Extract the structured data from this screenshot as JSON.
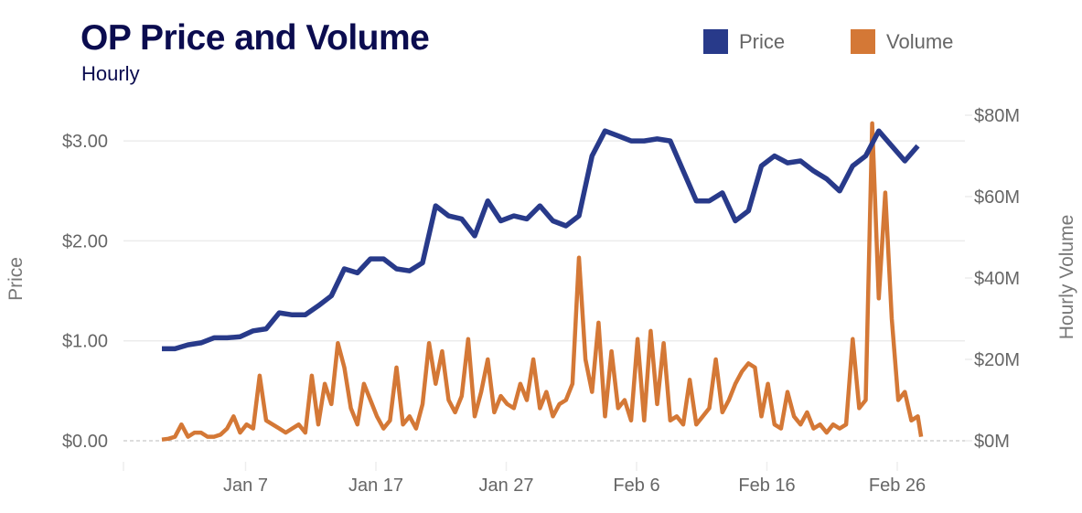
{
  "chart_data": {
    "type": "line",
    "title": "OP Price and Volume",
    "subtitle": "Hourly",
    "legend": {
      "placement": "top-right",
      "entries": [
        "Price",
        "Volume"
      ]
    },
    "colors": {
      "price": "#283a8a",
      "volume": "#d47836",
      "title": "#0b0c4f"
    },
    "y_left": {
      "label": "Price",
      "range": [
        0,
        3.3
      ],
      "ticks": [
        "$0.00",
        "$1.00",
        "$2.00",
        "$3.00"
      ],
      "tick_values": [
        0,
        1,
        2,
        3
      ]
    },
    "y_right": {
      "label": "Hourly Volume",
      "range": [
        0,
        80
      ],
      "ticks": [
        "$0M",
        "$20M",
        "$40M",
        "$60M",
        "$80M"
      ],
      "tick_values": [
        0,
        20,
        40,
        60,
        80
      ]
    },
    "x": {
      "ticks": [
        "Jan 7",
        "Jan 17",
        "Jan 27",
        "Feb 6",
        "Feb 16",
        "Feb 26"
      ]
    },
    "grid": true,
    "series": [
      {
        "name": "Price",
        "axis": "left",
        "points": [
          [
            "Jan 1",
            0.92
          ],
          [
            "Jan 2",
            0.92
          ],
          [
            "Jan 3",
            0.96
          ],
          [
            "Jan 4",
            0.98
          ],
          [
            "Jan 5",
            1.03
          ],
          [
            "Jan 6",
            1.03
          ],
          [
            "Jan 7",
            1.04
          ],
          [
            "Jan 8",
            1.1
          ],
          [
            "Jan 9",
            1.12
          ],
          [
            "Jan 10",
            1.28
          ],
          [
            "Jan 11",
            1.26
          ],
          [
            "Jan 12",
            1.26
          ],
          [
            "Jan 13",
            1.35
          ],
          [
            "Jan 14",
            1.45
          ],
          [
            "Jan 15",
            1.72
          ],
          [
            "Jan 16",
            1.68
          ],
          [
            "Jan 17",
            1.82
          ],
          [
            "Jan 18",
            1.82
          ],
          [
            "Jan 19",
            1.72
          ],
          [
            "Jan 20",
            1.7
          ],
          [
            "Jan 21",
            1.78
          ],
          [
            "Jan 22",
            2.35
          ],
          [
            "Jan 23",
            2.25
          ],
          [
            "Jan 24",
            2.22
          ],
          [
            "Jan 25",
            2.05
          ],
          [
            "Jan 26",
            2.4
          ],
          [
            "Jan 27",
            2.2
          ],
          [
            "Jan 28",
            2.25
          ],
          [
            "Jan 29",
            2.22
          ],
          [
            "Jan 30",
            2.35
          ],
          [
            "Jan 31",
            2.2
          ],
          [
            "Feb 1",
            2.15
          ],
          [
            "Feb 2",
            2.25
          ],
          [
            "Feb 3",
            2.85
          ],
          [
            "Feb 4",
            3.1
          ],
          [
            "Feb 5",
            3.05
          ],
          [
            "Feb 6",
            3.0
          ],
          [
            "Feb 7",
            3.0
          ],
          [
            "Feb 8",
            3.02
          ],
          [
            "Feb 9",
            3.0
          ],
          [
            "Feb 10",
            2.7
          ],
          [
            "Feb 11",
            2.4
          ],
          [
            "Feb 12",
            2.4
          ],
          [
            "Feb 13",
            2.48
          ],
          [
            "Feb 14",
            2.2
          ],
          [
            "Feb 15",
            2.3
          ],
          [
            "Feb 16",
            2.75
          ],
          [
            "Feb 17",
            2.85
          ],
          [
            "Feb 18",
            2.78
          ],
          [
            "Feb 19",
            2.8
          ],
          [
            "Feb 20",
            2.7
          ],
          [
            "Feb 21",
            2.62
          ],
          [
            "Feb 22",
            2.5
          ],
          [
            "Feb 23",
            2.75
          ],
          [
            "Feb 24",
            2.85
          ],
          [
            "Feb 25",
            3.1
          ],
          [
            "Feb 26",
            2.95
          ],
          [
            "Feb 27",
            2.8
          ],
          [
            "Feb 28",
            2.95
          ]
        ]
      },
      {
        "name": "Volume",
        "axis": "right",
        "points": [
          [
            "Jan 1 00:00",
            0.3
          ],
          [
            "Jan 1 12:00",
            0.5
          ],
          [
            "Jan 2 00:00",
            1
          ],
          [
            "Jan 2 12:00",
            4
          ],
          [
            "Jan 3 00:00",
            1
          ],
          [
            "Jan 3 12:00",
            2
          ],
          [
            "Jan 4 00:00",
            2
          ],
          [
            "Jan 4 12:00",
            1
          ],
          [
            "Jan 5 00:00",
            1
          ],
          [
            "Jan 5 12:00",
            1.5
          ],
          [
            "Jan 6 00:00",
            3
          ],
          [
            "Jan 6 12:00",
            6
          ],
          [
            "Jan 7 00:00",
            2
          ],
          [
            "Jan 7 12:00",
            4
          ],
          [
            "Jan 8 00:00",
            3
          ],
          [
            "Jan 8 12:00",
            16
          ],
          [
            "Jan 9 00:00",
            5
          ],
          [
            "Jan 9 12:00",
            4
          ],
          [
            "Jan 10 00:00",
            3
          ],
          [
            "Jan 10 12:00",
            2
          ],
          [
            "Jan 11 00:00",
            3
          ],
          [
            "Jan 11 12:00",
            4
          ],
          [
            "Jan 12 00:00",
            2
          ],
          [
            "Jan 12 12:00",
            16
          ],
          [
            "Jan 13 00:00",
            4
          ],
          [
            "Jan 13 12:00",
            14
          ],
          [
            "Jan 14 00:00",
            9
          ],
          [
            "Jan 14 12:00",
            24
          ],
          [
            "Jan 15 00:00",
            18
          ],
          [
            "Jan 15 12:00",
            8
          ],
          [
            "Jan 16 00:00",
            4
          ],
          [
            "Jan 16 12:00",
            14
          ],
          [
            "Jan 17 00:00",
            10
          ],
          [
            "Jan 17 12:00",
            6
          ],
          [
            "Jan 18 00:00",
            3
          ],
          [
            "Jan 18 12:00",
            5
          ],
          [
            "Jan 19 00:00",
            18
          ],
          [
            "Jan 19 12:00",
            4
          ],
          [
            "Jan 20 00:00",
            6
          ],
          [
            "Jan 20 12:00",
            3
          ],
          [
            "Jan 21 00:00",
            9
          ],
          [
            "Jan 21 12:00",
            24
          ],
          [
            "Jan 22 00:00",
            14
          ],
          [
            "Jan 22 12:00",
            22
          ],
          [
            "Jan 23 00:00",
            10
          ],
          [
            "Jan 23 12:00",
            7
          ],
          [
            "Jan 24 00:00",
            11
          ],
          [
            "Jan 24 12:00",
            25
          ],
          [
            "Jan 25 00:00",
            6
          ],
          [
            "Jan 25 12:00",
            12
          ],
          [
            "Jan 26 00:00",
            20
          ],
          [
            "Jan 26 12:00",
            7
          ],
          [
            "Jan 27 00:00",
            11
          ],
          [
            "Jan 27 12:00",
            9
          ],
          [
            "Jan 28 00:00",
            8
          ],
          [
            "Jan 28 12:00",
            14
          ],
          [
            "Jan 29 00:00",
            10
          ],
          [
            "Jan 29 12:00",
            20
          ],
          [
            "Jan 30 00:00",
            8
          ],
          [
            "Jan 30 12:00",
            12
          ],
          [
            "Jan 31 00:00",
            6
          ],
          [
            "Jan 31 12:00",
            9
          ],
          [
            "Feb 1 00:00",
            10
          ],
          [
            "Feb 1 12:00",
            14
          ],
          [
            "Feb 2 00:00",
            45
          ],
          [
            "Feb 2 12:00",
            20
          ],
          [
            "Feb 3 00:00",
            12
          ],
          [
            "Feb 3 12:00",
            29
          ],
          [
            "Feb 4 00:00",
            6
          ],
          [
            "Feb 4 12:00",
            22
          ],
          [
            "Feb 5 00:00",
            8
          ],
          [
            "Feb 5 12:00",
            10
          ],
          [
            "Feb 6 00:00",
            5
          ],
          [
            "Feb 6 12:00",
            25
          ],
          [
            "Feb 7 00:00",
            5
          ],
          [
            "Feb 7 12:00",
            27
          ],
          [
            "Feb 8 00:00",
            9
          ],
          [
            "Feb 8 12:00",
            24
          ],
          [
            "Feb 9 00:00",
            5
          ],
          [
            "Feb 9 12:00",
            6
          ],
          [
            "Feb 10 00:00",
            4
          ],
          [
            "Feb 10 12:00",
            15
          ],
          [
            "Feb 11 00:00",
            4
          ],
          [
            "Feb 11 12:00",
            6
          ],
          [
            "Feb 12 00:00",
            8
          ],
          [
            "Feb 12 12:00",
            20
          ],
          [
            "Feb 13 00:00",
            7
          ],
          [
            "Feb 13 12:00",
            10
          ],
          [
            "Feb 14 00:00",
            14
          ],
          [
            "Feb 14 12:00",
            17
          ],
          [
            "Feb 15 00:00",
            19
          ],
          [
            "Feb 15 12:00",
            18
          ],
          [
            "Feb 16 00:00",
            6
          ],
          [
            "Feb 16 12:00",
            14
          ],
          [
            "Feb 17 00:00",
            4
          ],
          [
            "Feb 17 12:00",
            3
          ],
          [
            "Feb 18 00:00",
            12
          ],
          [
            "Feb 18 12:00",
            6
          ],
          [
            "Feb 19 00:00",
            4
          ],
          [
            "Feb 19 12:00",
            7
          ],
          [
            "Feb 20 00:00",
            3
          ],
          [
            "Feb 20 12:00",
            4
          ],
          [
            "Feb 21 00:00",
            2
          ],
          [
            "Feb 21 12:00",
            4
          ],
          [
            "Feb 22 00:00",
            3
          ],
          [
            "Feb 22 12:00",
            4
          ],
          [
            "Feb 23 00:00",
            25
          ],
          [
            "Feb 23 12:00",
            8
          ],
          [
            "Feb 24 00:00",
            10
          ],
          [
            "Feb 24 12:00",
            78
          ],
          [
            "Feb 25 00:00",
            35
          ],
          [
            "Feb 25 12:00",
            61
          ],
          [
            "Feb 26 00:00",
            30
          ],
          [
            "Feb 26 12:00",
            10
          ],
          [
            "Feb 27 00:00",
            12
          ],
          [
            "Feb 27 12:00",
            5
          ],
          [
            "Feb 28 00:00",
            6
          ],
          [
            "Feb 28 06:00",
            1
          ]
        ]
      }
    ]
  }
}
